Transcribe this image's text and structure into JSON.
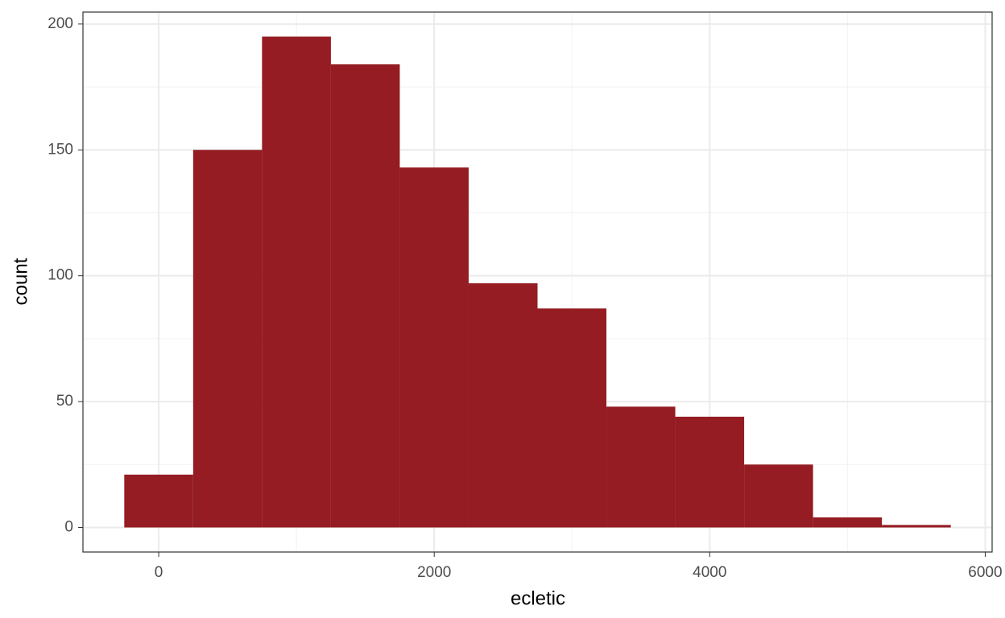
{
  "chart_data": {
    "type": "histogram",
    "x_label": "ecletic",
    "y_label": "count",
    "bins": [
      -250,
      250,
      750,
      1250,
      1750,
      2250,
      2750,
      3250,
      3750,
      4250,
      4750,
      5250,
      5750
    ],
    "values": [
      21,
      150,
      195,
      184,
      143,
      97,
      87,
      48,
      44,
      25,
      4,
      1
    ],
    "color": "#941c22",
    "xlim": [
      -550,
      6050
    ],
    "xticks": [
      0,
      2000,
      4000,
      6000
    ],
    "x_minor_ticks": [
      1000,
      3000,
      5000
    ],
    "ylim": [
      -9.75,
      204.75
    ],
    "yticks": [
      0,
      50,
      100,
      150,
      200
    ],
    "y_minor_ticks": [
      25,
      75,
      125,
      175
    ],
    "grid": true
  }
}
